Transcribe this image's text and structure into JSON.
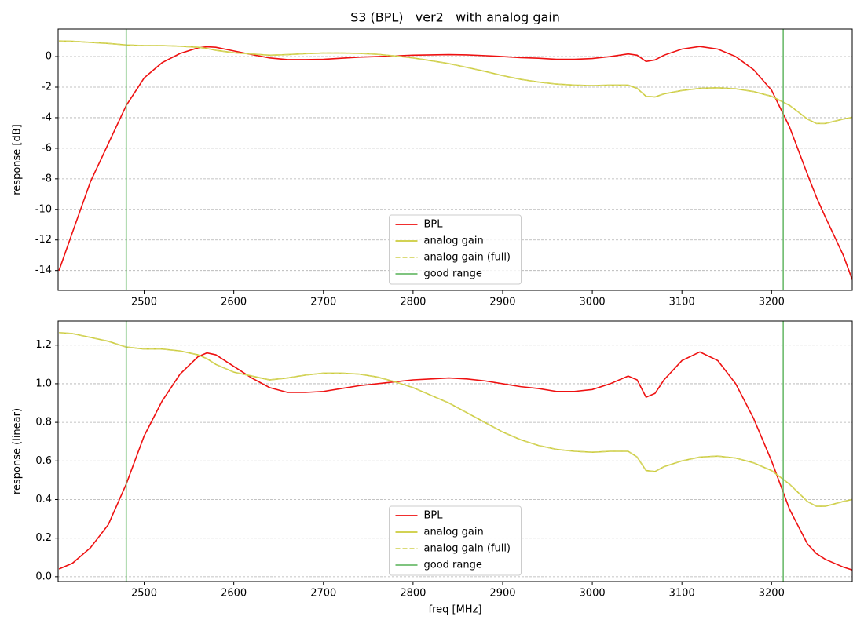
{
  "chart_data": [
    {
      "type": "line",
      "title": "S3 (BPL)   ver2   with analog gain",
      "ylabel": "response [dB]",
      "x": [
        2405,
        2420,
        2440,
        2460,
        2480,
        2500,
        2520,
        2540,
        2560,
        2570,
        2580,
        2600,
        2620,
        2640,
        2660,
        2680,
        2700,
        2720,
        2740,
        2760,
        2780,
        2800,
        2820,
        2840,
        2860,
        2880,
        2900,
        2920,
        2940,
        2960,
        2980,
        3000,
        3020,
        3040,
        3050,
        3060,
        3070,
        3080,
        3100,
        3120,
        3140,
        3160,
        3180,
        3200,
        3220,
        3240,
        3250,
        3260,
        3280,
        3290
      ],
      "series": [
        {
          "name": "BPL",
          "color": "#ee1111",
          "linestyle": "solid",
          "values": [
            -14.0,
            -11.5,
            -8.2,
            -5.7,
            -3.2,
            -1.4,
            -0.4,
            0.2,
            0.57,
            0.64,
            0.61,
            0.37,
            0.13,
            -0.09,
            -0.2,
            -0.2,
            -0.18,
            -0.11,
            -0.04,
            0,
            0.04,
            0.09,
            0.11,
            0.13,
            0.11,
            0.06,
            0,
            -0.07,
            -0.11,
            -0.18,
            -0.18,
            -0.13,
            0,
            0.17,
            0.09,
            -0.32,
            -0.22,
            0.09,
            0.49,
            0.66,
            0.49,
            0,
            -0.86,
            -2.2,
            -4.6,
            -7.7,
            -9.2,
            -10.5,
            -13.0,
            -14.6
          ]
        },
        {
          "name": "analog gain",
          "color": "#cccc3c",
          "linestyle": "solid",
          "values": [
            1.02,
            1.0,
            0.93,
            0.86,
            0.76,
            0.72,
            0.72,
            0.68,
            0.61,
            0.53,
            0.41,
            0.25,
            0.17,
            0.09,
            0.13,
            0.19,
            0.23,
            0.23,
            0.21,
            0.15,
            0.04,
            -0.09,
            -0.27,
            -0.46,
            -0.71,
            -0.97,
            -1.25,
            -1.49,
            -1.67,
            -1.8,
            -1.87,
            -1.9,
            -1.87,
            -1.87,
            -2.08,
            -2.6,
            -2.64,
            -2.44,
            -2.22,
            -2.08,
            -2.04,
            -2.11,
            -2.29,
            -2.6,
            -3.19,
            -4.09,
            -4.38,
            -4.38,
            -4.09,
            -3.98
          ]
        },
        {
          "name": "analog gain (full)",
          "color": "#d6d666",
          "linestyle": "dashed",
          "values": [
            1.02,
            1.0,
            0.93,
            0.86,
            0.76,
            0.72,
            0.72,
            0.68,
            0.61,
            0.53,
            0.41,
            0.25,
            0.17,
            0.09,
            0.13,
            0.19,
            0.23,
            0.23,
            0.21,
            0.15,
            0.04,
            -0.09,
            -0.27,
            -0.46,
            -0.71,
            -0.97,
            -1.25,
            -1.49,
            -1.67,
            -1.8,
            -1.87,
            -1.9,
            -1.87,
            -1.87,
            -2.08,
            -2.6,
            -2.64,
            -2.44,
            -2.22,
            -2.08,
            -2.04,
            -2.11,
            -2.29,
            -2.6,
            -3.19,
            -4.09,
            -4.38,
            -4.38,
            -4.09,
            -3.98
          ]
        }
      ],
      "vlines": {
        "name": "good range",
        "color": "#6dbb6d",
        "x": [
          2480,
          3213
        ]
      },
      "xlim": [
        2404,
        3290
      ],
      "xticks": [
        2500,
        2600,
        2700,
        2800,
        2900,
        3000,
        3100,
        3200
      ],
      "ylim": [
        -15.3,
        1.8
      ],
      "yticks": [
        -14,
        -12,
        -10,
        -8,
        -6,
        -4,
        -2,
        0
      ],
      "grid": "y",
      "legend": "lower center"
    },
    {
      "type": "line",
      "xlabel": "freq [MHz]",
      "ylabel": "response (linear)",
      "x": [
        2405,
        2420,
        2440,
        2460,
        2480,
        2500,
        2520,
        2540,
        2560,
        2570,
        2580,
        2600,
        2620,
        2640,
        2660,
        2680,
        2700,
        2720,
        2740,
        2760,
        2780,
        2800,
        2820,
        2840,
        2860,
        2880,
        2900,
        2920,
        2940,
        2960,
        2980,
        3000,
        3020,
        3040,
        3050,
        3060,
        3070,
        3080,
        3100,
        3120,
        3140,
        3160,
        3180,
        3200,
        3220,
        3240,
        3250,
        3260,
        3280,
        3290
      ],
      "series": [
        {
          "name": "BPL",
          "color": "#ee1111",
          "linestyle": "solid",
          "values": [
            0.04,
            0.07,
            0.15,
            0.27,
            0.48,
            0.73,
            0.91,
            1.05,
            1.14,
            1.16,
            1.15,
            1.09,
            1.03,
            0.98,
            0.955,
            0.955,
            0.96,
            0.975,
            0.99,
            1.0,
            1.01,
            1.02,
            1.025,
            1.03,
            1.025,
            1.015,
            1.0,
            0.985,
            0.975,
            0.96,
            0.96,
            0.97,
            1.0,
            1.04,
            1.02,
            0.93,
            0.95,
            1.02,
            1.12,
            1.165,
            1.12,
            1.0,
            0.82,
            0.6,
            0.35,
            0.17,
            0.12,
            0.09,
            0.05,
            0.035
          ]
        },
        {
          "name": "analog gain",
          "color": "#cccc3c",
          "linestyle": "solid",
          "values": [
            1.265,
            1.26,
            1.24,
            1.22,
            1.19,
            1.18,
            1.18,
            1.17,
            1.15,
            1.13,
            1.1,
            1.06,
            1.04,
            1.02,
            1.03,
            1.045,
            1.055,
            1.055,
            1.05,
            1.035,
            1.01,
            0.98,
            0.94,
            0.9,
            0.85,
            0.8,
            0.75,
            0.71,
            0.68,
            0.66,
            0.65,
            0.645,
            0.65,
            0.65,
            0.62,
            0.55,
            0.545,
            0.57,
            0.6,
            0.62,
            0.625,
            0.615,
            0.59,
            0.55,
            0.48,
            0.39,
            0.365,
            0.365,
            0.39,
            0.4
          ]
        },
        {
          "name": "analog gain (full)",
          "color": "#d6d666",
          "linestyle": "dashed",
          "values": [
            1.265,
            1.26,
            1.24,
            1.22,
            1.19,
            1.18,
            1.18,
            1.17,
            1.15,
            1.13,
            1.1,
            1.06,
            1.04,
            1.02,
            1.03,
            1.045,
            1.055,
            1.055,
            1.05,
            1.035,
            1.01,
            0.98,
            0.94,
            0.9,
            0.85,
            0.8,
            0.75,
            0.71,
            0.68,
            0.66,
            0.65,
            0.645,
            0.65,
            0.65,
            0.62,
            0.55,
            0.545,
            0.57,
            0.6,
            0.62,
            0.625,
            0.615,
            0.59,
            0.55,
            0.48,
            0.39,
            0.365,
            0.365,
            0.39,
            0.4
          ]
        }
      ],
      "vlines": {
        "name": "good range",
        "color": "#6dbb6d",
        "x": [
          2480,
          3213
        ]
      },
      "xlim": [
        2404,
        3290
      ],
      "xticks": [
        2500,
        2600,
        2700,
        2800,
        2900,
        3000,
        3100,
        3200
      ],
      "ylim": [
        -0.025,
        1.325
      ],
      "yticks": [
        {
          "value": 0,
          "label": "0.0"
        },
        0.2,
        0.4,
        0.6,
        0.8,
        {
          "value": 1,
          "label": "1.0"
        },
        1.2
      ],
      "grid": "y",
      "legend": "lower center"
    }
  ]
}
